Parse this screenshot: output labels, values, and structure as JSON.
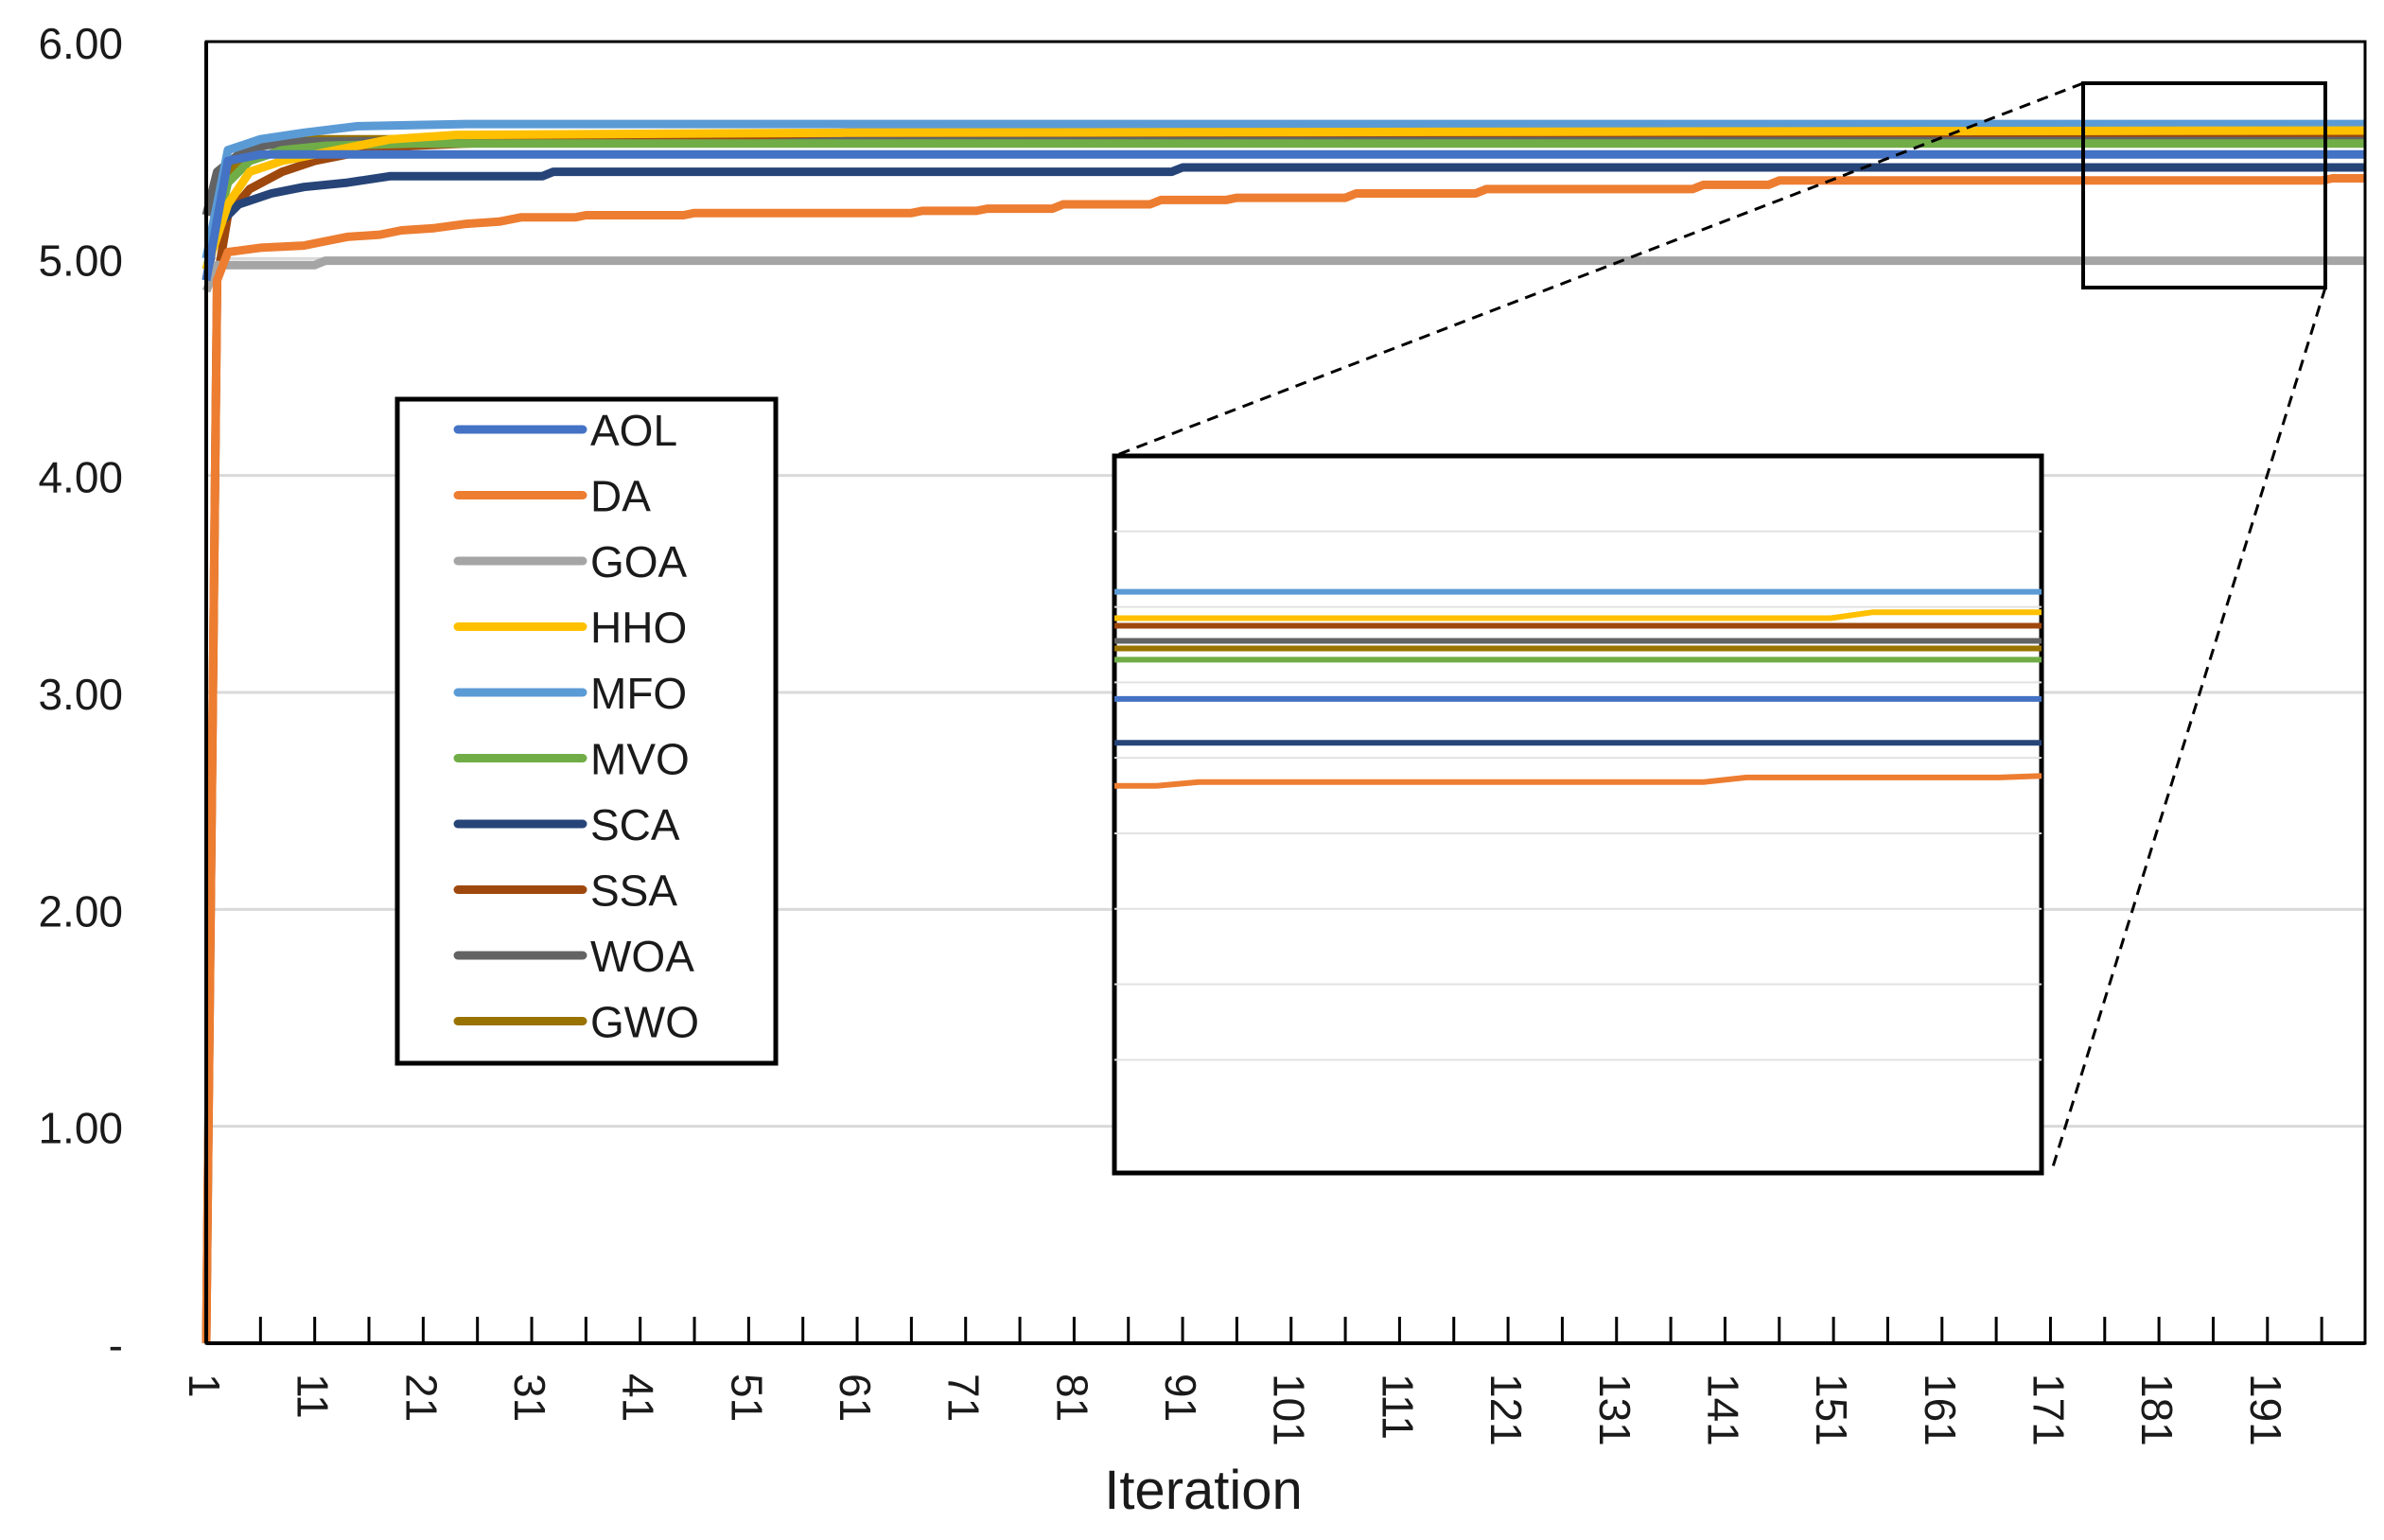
{
  "chart_data": {
    "type": "line",
    "title": "",
    "xlabel": "Iteration",
    "ylabel": "",
    "ylim": [
      0,
      6
    ],
    "xlim": [
      1,
      200
    ],
    "y_ticks": [
      {
        "value": 0,
        "label": "-"
      },
      {
        "value": 1,
        "label": "1.00"
      },
      {
        "value": 2,
        "label": "2.00"
      },
      {
        "value": 3,
        "label": "3.00"
      },
      {
        "value": 4,
        "label": "4.00"
      },
      {
        "value": 5,
        "label": "5.00"
      },
      {
        "value": 6,
        "label": "6.00"
      }
    ],
    "x_ticks": [
      "1",
      "11",
      "21",
      "31",
      "41",
      "51",
      "61",
      "71",
      "81",
      "91",
      "101",
      "111",
      "121",
      "131",
      "141",
      "151",
      "161",
      "171",
      "181",
      "191"
    ],
    "grid": "horizontal",
    "legend_position": "center-left",
    "series": [
      {
        "name": "AOL",
        "color": "#4472C4",
        "points": [
          [
            1,
            4.9
          ],
          [
            3,
            5.45
          ],
          [
            6,
            5.48
          ],
          [
            200,
            5.48
          ]
        ]
      },
      {
        "name": "DA",
        "color": "#ED7D31",
        "points": [
          [
            1,
            0
          ],
          [
            2,
            4.9
          ],
          [
            3,
            5.03
          ],
          [
            6,
            5.05
          ],
          [
            10,
            5.06
          ],
          [
            12,
            5.08
          ],
          [
            14,
            5.1
          ],
          [
            17,
            5.11
          ],
          [
            19,
            5.13
          ],
          [
            22,
            5.14
          ],
          [
            25,
            5.16
          ],
          [
            28,
            5.17
          ],
          [
            30,
            5.19
          ],
          [
            35,
            5.19
          ],
          [
            36,
            5.2
          ],
          [
            45,
            5.2
          ],
          [
            46,
            5.21
          ],
          [
            66,
            5.21
          ],
          [
            67,
            5.22
          ],
          [
            72,
            5.22
          ],
          [
            73,
            5.23
          ],
          [
            79,
            5.23
          ],
          [
            80,
            5.25
          ],
          [
            88,
            5.25
          ],
          [
            89,
            5.27
          ],
          [
            95,
            5.27
          ],
          [
            96,
            5.28
          ],
          [
            106,
            5.28
          ],
          [
            107,
            5.3
          ],
          [
            118,
            5.3
          ],
          [
            119,
            5.32
          ],
          [
            138,
            5.32
          ],
          [
            139,
            5.34
          ],
          [
            145,
            5.34
          ],
          [
            146,
            5.36
          ],
          [
            196,
            5.36
          ],
          [
            197,
            5.37
          ],
          [
            200,
            5.37
          ]
        ]
      },
      {
        "name": "GOA",
        "color": "#A5A5A5",
        "points": [
          [
            1,
            4.85
          ],
          [
            2,
            4.97
          ],
          [
            11,
            4.97
          ],
          [
            12,
            4.99
          ],
          [
            200,
            4.99
          ]
        ]
      },
      {
        "name": "HHO",
        "color": "#FFC000",
        "points": [
          [
            1,
            4.95
          ],
          [
            3,
            5.25
          ],
          [
            5,
            5.4
          ],
          [
            8,
            5.45
          ],
          [
            13,
            5.5
          ],
          [
            18,
            5.55
          ],
          [
            24,
            5.57
          ],
          [
            60,
            5.58
          ],
          [
            200,
            5.59
          ]
        ]
      },
      {
        "name": "MFO",
        "color": "#5B9BD5",
        "points": [
          [
            1,
            5.0
          ],
          [
            3,
            5.5
          ],
          [
            6,
            5.55
          ],
          [
            10,
            5.58
          ],
          [
            15,
            5.61
          ],
          [
            25,
            5.62
          ],
          [
            200,
            5.62
          ]
        ]
      },
      {
        "name": "MVO",
        "color": "#70AD47",
        "points": [
          [
            1,
            4.95
          ],
          [
            3,
            5.35
          ],
          [
            5,
            5.45
          ],
          [
            8,
            5.5
          ],
          [
            12,
            5.52
          ],
          [
            20,
            5.53
          ],
          [
            200,
            5.53
          ]
        ]
      },
      {
        "name": "SCA",
        "color": "#264478",
        "points": [
          [
            1,
            4.9
          ],
          [
            2,
            5.15
          ],
          [
            4,
            5.25
          ],
          [
            7,
            5.3
          ],
          [
            10,
            5.33
          ],
          [
            14,
            5.35
          ],
          [
            18,
            5.38
          ],
          [
            32,
            5.38
          ],
          [
            33,
            5.4
          ],
          [
            90,
            5.4
          ],
          [
            91,
            5.42
          ],
          [
            200,
            5.42
          ]
        ]
      },
      {
        "name": "SSA",
        "color": "#9E480E",
        "points": [
          [
            1,
            0
          ],
          [
            2,
            4.9
          ],
          [
            3,
            5.2
          ],
          [
            5,
            5.32
          ],
          [
            8,
            5.4
          ],
          [
            11,
            5.45
          ],
          [
            15,
            5.49
          ],
          [
            20,
            5.52
          ],
          [
            30,
            5.54
          ],
          [
            45,
            5.56
          ],
          [
            60,
            5.58
          ],
          [
            200,
            5.58
          ]
        ]
      },
      {
        "name": "WOA",
        "color": "#636363",
        "points": [
          [
            1,
            5.2
          ],
          [
            2,
            5.4
          ],
          [
            4,
            5.48
          ],
          [
            6,
            5.52
          ],
          [
            10,
            5.54
          ],
          [
            200,
            5.55
          ]
        ]
      },
      {
        "name": "GWO",
        "color": "#997300",
        "points": [
          [
            1,
            4.9
          ],
          [
            2,
            5.2
          ],
          [
            3,
            5.4
          ],
          [
            5,
            5.5
          ],
          [
            7,
            5.53
          ],
          [
            10,
            5.55
          ],
          [
            200,
            5.55
          ]
        ]
      }
    ],
    "inset": {
      "description_x_range": [
        176,
        198
      ],
      "y_range": [
        4.85,
        5.8
      ],
      "series": [
        {
          "name": "MFO",
          "points": [
            [
              176,
              5.62
            ],
            [
              198,
              5.62
            ]
          ]
        },
        {
          "name": "HHO",
          "points": [
            [
              176,
              5.585
            ],
            [
              193,
              5.585
            ],
            [
              194,
              5.593
            ],
            [
              198,
              5.593
            ]
          ]
        },
        {
          "name": "SSA",
          "points": [
            [
              176,
              5.575
            ],
            [
              198,
              5.575
            ]
          ]
        },
        {
          "name": "WOA",
          "points": [
            [
              176,
              5.555
            ],
            [
              198,
              5.555
            ]
          ]
        },
        {
          "name": "GWO",
          "points": [
            [
              176,
              5.545
            ],
            [
              198,
              5.545
            ]
          ]
        },
        {
          "name": "MVO",
          "points": [
            [
              176,
              5.53
            ],
            [
              198,
              5.53
            ]
          ]
        },
        {
          "name": "AOL",
          "points": [
            [
              176,
              5.478
            ],
            [
              198,
              5.478
            ]
          ]
        },
        {
          "name": "SCA",
          "points": [
            [
              176,
              5.42
            ],
            [
              198,
              5.42
            ]
          ]
        },
        {
          "name": "DA",
          "points": [
            [
              176,
              5.363
            ],
            [
              177,
              5.363
            ],
            [
              178,
              5.368
            ],
            [
              190,
              5.368
            ],
            [
              191,
              5.374
            ],
            [
              197,
              5.374
            ],
            [
              198,
              5.376
            ]
          ]
        }
      ]
    }
  }
}
